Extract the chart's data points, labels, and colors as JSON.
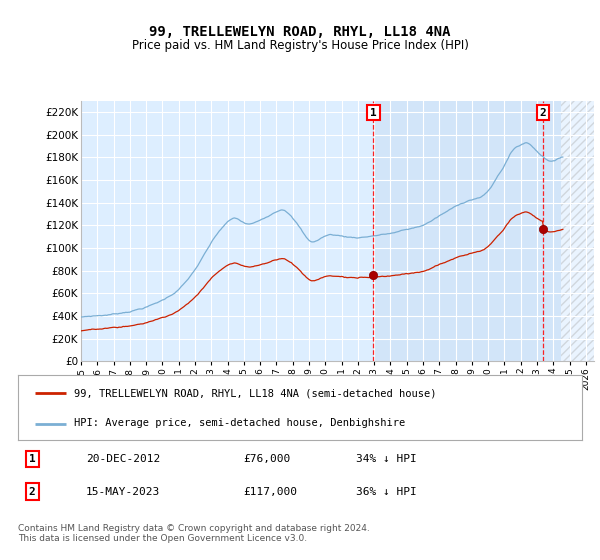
{
  "title": "99, TRELLEWELYN ROAD, RHYL, LL18 4NA",
  "subtitle": "Price paid vs. HM Land Registry's House Price Index (HPI)",
  "ylim": [
    0,
    230000
  ],
  "yticks": [
    0,
    20000,
    40000,
    60000,
    80000,
    100000,
    120000,
    140000,
    160000,
    180000,
    200000,
    220000
  ],
  "ytick_labels": [
    "£0",
    "£20K",
    "£40K",
    "£60K",
    "£80K",
    "£100K",
    "£120K",
    "£140K",
    "£160K",
    "£180K",
    "£200K",
    "£220K"
  ],
  "x_start_year": 1995,
  "x_end_year": 2026,
  "hpi_color": "#7bafd4",
  "price_color": "#cc2200",
  "background_color": "#ddeeff",
  "highlight_color": "#cce0f5",
  "grid_color": "#ffffff",
  "transaction1_x": 2012.958,
  "transaction1_price": 76000,
  "transaction1_date": "20-DEC-2012",
  "transaction1_label": "34% ↓ HPI",
  "transaction2_x": 2023.37,
  "transaction2_price": 117000,
  "transaction2_date": "15-MAY-2023",
  "transaction2_label": "36% ↓ HPI",
  "legend1": "99, TRELLEWELYN ROAD, RHYL, LL18 4NA (semi-detached house)",
  "legend2": "HPI: Average price, semi-detached house, Denbighshire",
  "footnote": "Contains HM Land Registry data © Crown copyright and database right 2024.\nThis data is licensed under the Open Government Licence v3.0."
}
